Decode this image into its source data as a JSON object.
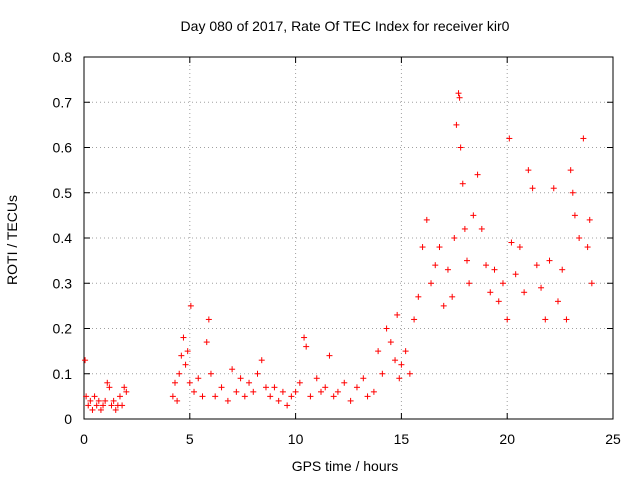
{
  "chart_data": {
    "type": "scatter",
    "title": "Day 080 of 2017, Rate Of TEC Index for receiver kir0",
    "xlabel": "GPS time / hours",
    "ylabel": "ROTI / TECUs",
    "xlim": [
      0,
      25
    ],
    "ylim": [
      0,
      0.8
    ],
    "xticks": [
      0,
      5,
      10,
      15,
      20,
      25
    ],
    "yticks": [
      0,
      0.1,
      0.2,
      0.3,
      0.4,
      0.5,
      0.6,
      0.7,
      0.8
    ],
    "xtick_labels": [
      "0",
      "5",
      "10",
      "15",
      "20",
      "25"
    ],
    "ytick_labels": [
      "0",
      "0.1",
      "0.2",
      "0.3",
      "0.4",
      "0.5",
      "0.6",
      "0.7",
      "0.8"
    ],
    "grid": true,
    "marker": "+",
    "color": "#ff0000",
    "series": [
      {
        "points": [
          [
            0.05,
            0.13
          ],
          [
            0.1,
            0.05
          ],
          [
            0.2,
            0.03
          ],
          [
            0.3,
            0.04
          ],
          [
            0.4,
            0.02
          ],
          [
            0.5,
            0.05
          ],
          [
            0.6,
            0.03
          ],
          [
            0.7,
            0.04
          ],
          [
            0.8,
            0.02
          ],
          [
            0.9,
            0.03
          ],
          [
            1.0,
            0.04
          ],
          [
            1.1,
            0.08
          ],
          [
            1.2,
            0.07
          ],
          [
            1.3,
            0.03
          ],
          [
            1.4,
            0.04
          ],
          [
            1.5,
            0.02
          ],
          [
            1.6,
            0.03
          ],
          [
            1.7,
            0.05
          ],
          [
            1.8,
            0.03
          ],
          [
            1.9,
            0.07
          ],
          [
            2.0,
            0.06
          ],
          [
            4.2,
            0.05
          ],
          [
            4.3,
            0.08
          ],
          [
            4.4,
            0.04
          ],
          [
            4.5,
            0.1
          ],
          [
            4.6,
            0.14
          ],
          [
            4.7,
            0.18
          ],
          [
            4.8,
            0.12
          ],
          [
            4.9,
            0.15
          ],
          [
            5.0,
            0.08
          ],
          [
            5.05,
            0.25
          ],
          [
            5.2,
            0.06
          ],
          [
            5.4,
            0.09
          ],
          [
            5.6,
            0.05
          ],
          [
            5.8,
            0.17
          ],
          [
            5.9,
            0.22
          ],
          [
            6.0,
            0.1
          ],
          [
            6.2,
            0.05
          ],
          [
            6.5,
            0.07
          ],
          [
            6.8,
            0.04
          ],
          [
            7.0,
            0.11
          ],
          [
            7.2,
            0.06
          ],
          [
            7.4,
            0.09
          ],
          [
            7.6,
            0.05
          ],
          [
            7.8,
            0.08
          ],
          [
            8.0,
            0.06
          ],
          [
            8.2,
            0.1
          ],
          [
            8.4,
            0.13
          ],
          [
            8.6,
            0.07
          ],
          [
            8.8,
            0.05
          ],
          [
            9.0,
            0.07
          ],
          [
            9.2,
            0.04
          ],
          [
            9.4,
            0.06
          ],
          [
            9.6,
            0.03
          ],
          [
            9.8,
            0.05
          ],
          [
            10.0,
            0.06
          ],
          [
            10.2,
            0.08
          ],
          [
            10.4,
            0.18
          ],
          [
            10.5,
            0.16
          ],
          [
            10.7,
            0.05
          ],
          [
            11.0,
            0.09
          ],
          [
            11.2,
            0.06
          ],
          [
            11.4,
            0.07
          ],
          [
            11.6,
            0.14
          ],
          [
            11.8,
            0.05
          ],
          [
            12.0,
            0.06
          ],
          [
            12.3,
            0.08
          ],
          [
            12.6,
            0.04
          ],
          [
            12.9,
            0.07
          ],
          [
            13.2,
            0.09
          ],
          [
            13.4,
            0.05
          ],
          [
            13.7,
            0.06
          ],
          [
            13.9,
            0.15
          ],
          [
            14.1,
            0.1
          ],
          [
            14.3,
            0.2
          ],
          [
            14.5,
            0.17
          ],
          [
            14.7,
            0.13
          ],
          [
            14.8,
            0.23
          ],
          [
            14.9,
            0.09
          ],
          [
            15.0,
            0.12
          ],
          [
            15.2,
            0.15
          ],
          [
            15.4,
            0.1
          ],
          [
            15.6,
            0.22
          ],
          [
            15.8,
            0.27
          ],
          [
            16.0,
            0.38
          ],
          [
            16.2,
            0.44
          ],
          [
            16.4,
            0.3
          ],
          [
            16.6,
            0.34
          ],
          [
            16.8,
            0.38
          ],
          [
            17.0,
            0.25
          ],
          [
            17.2,
            0.33
          ],
          [
            17.4,
            0.27
          ],
          [
            17.5,
            0.4
          ],
          [
            17.6,
            0.65
          ],
          [
            17.7,
            0.72
          ],
          [
            17.75,
            0.71
          ],
          [
            17.8,
            0.6
          ],
          [
            17.9,
            0.52
          ],
          [
            18.0,
            0.42
          ],
          [
            18.1,
            0.35
          ],
          [
            18.2,
            0.3
          ],
          [
            18.4,
            0.45
          ],
          [
            18.6,
            0.54
          ],
          [
            18.8,
            0.42
          ],
          [
            19.0,
            0.34
          ],
          [
            19.2,
            0.28
          ],
          [
            19.4,
            0.33
          ],
          [
            19.6,
            0.26
          ],
          [
            19.8,
            0.3
          ],
          [
            20.0,
            0.22
          ],
          [
            20.1,
            0.62
          ],
          [
            20.2,
            0.39
          ],
          [
            20.4,
            0.32
          ],
          [
            20.6,
            0.38
          ],
          [
            20.8,
            0.28
          ],
          [
            21.0,
            0.55
          ],
          [
            21.2,
            0.51
          ],
          [
            21.4,
            0.34
          ],
          [
            21.6,
            0.29
          ],
          [
            21.8,
            0.22
          ],
          [
            22.0,
            0.35
          ],
          [
            22.2,
            0.51
          ],
          [
            22.4,
            0.26
          ],
          [
            22.6,
            0.33
          ],
          [
            22.8,
            0.22
          ],
          [
            23.0,
            0.55
          ],
          [
            23.1,
            0.5
          ],
          [
            23.2,
            0.45
          ],
          [
            23.4,
            0.4
          ],
          [
            23.6,
            0.62
          ],
          [
            23.8,
            0.38
          ],
          [
            23.9,
            0.44
          ],
          [
            24.0,
            0.3
          ]
        ]
      }
    ]
  }
}
